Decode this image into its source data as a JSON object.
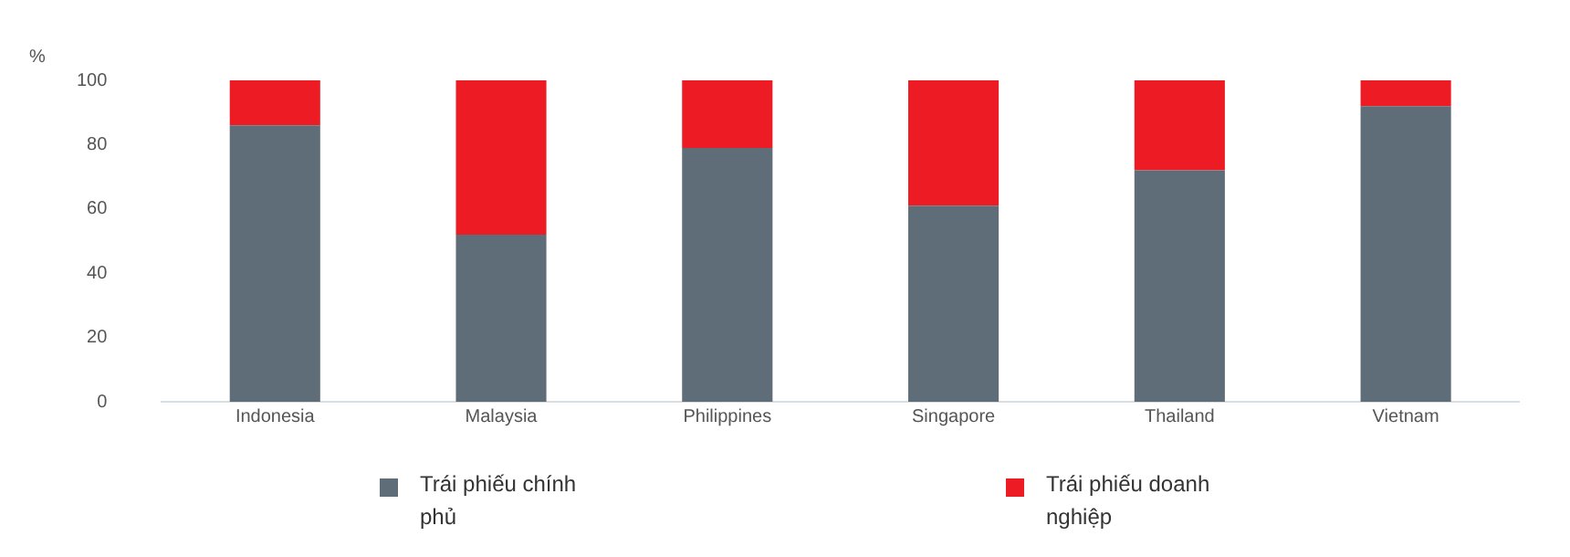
{
  "chart_data": {
    "type": "bar",
    "ylabel": "%",
    "stacked": true,
    "categories": [
      "Indonesia",
      "Malaysia",
      "Philippines",
      "Singapore",
      "Thailand",
      "Vietnam"
    ],
    "series": [
      {
        "name": "Trái phiếu chính phủ",
        "color": "#5f6d78",
        "values": [
          86,
          52,
          79,
          61,
          72,
          92
        ]
      },
      {
        "name": "Trái phiếu doanh nghiệp",
        "color": "#ed1c24",
        "values": [
          14,
          48,
          21,
          39,
          28,
          8
        ]
      }
    ],
    "ylim": [
      0,
      100
    ],
    "yticks": [
      0,
      20,
      40,
      60,
      80,
      100
    ],
    "grid": false,
    "legend": "bottom"
  }
}
